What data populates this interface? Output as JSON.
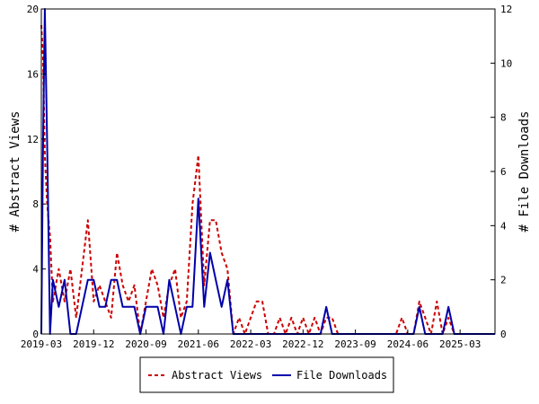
{
  "chart_data": {
    "type": "line",
    "xlabel": "",
    "ylabel": "# Abstract Views",
    "y2label": "# File Downloads",
    "x_tick_labels": [
      "2019-03",
      "2019-12",
      "2020-09",
      "2021-06",
      "2022-03",
      "2022-12",
      "2023-09",
      "2024-06",
      "2025-03"
    ],
    "x_tick_index": [
      0,
      9,
      18,
      27,
      36,
      45,
      54,
      63,
      72
    ],
    "xlim": [
      0,
      78
    ],
    "ylim": [
      0,
      20
    ],
    "y_ticks": [
      "0",
      "4",
      "8",
      "12",
      "16",
      "20"
    ],
    "y2lim": [
      0,
      12
    ],
    "y2_ticks": [
      "0",
      "2",
      "4",
      "6",
      "8",
      "10",
      "12"
    ],
    "grid": false,
    "legend_position": "bottom",
    "series": [
      {
        "name": "Abstract Views",
        "axis": "left",
        "color": "#cc0000",
        "dash": true,
        "x": [
          0,
          0.3,
          0.6,
          1,
          1.5,
          2,
          3,
          4,
          5,
          6,
          7,
          8,
          9,
          10,
          11,
          12,
          13,
          14,
          15,
          16,
          17,
          18,
          19,
          20,
          21,
          22,
          23,
          24,
          25,
          26,
          27,
          28,
          29,
          30,
          31,
          32,
          33,
          34,
          35,
          36,
          37,
          38,
          39,
          40,
          41,
          42,
          43,
          44,
          45,
          46,
          47,
          48,
          49,
          50,
          51,
          52,
          53,
          54,
          55,
          56,
          57,
          58,
          59,
          60,
          61,
          62,
          63,
          64,
          65,
          66,
          67,
          68,
          69,
          70,
          71,
          72,
          73,
          74,
          75,
          76,
          77,
          78
        ],
        "values": [
          19,
          17,
          11,
          8,
          6,
          2,
          4,
          2,
          4,
          1,
          4,
          7,
          2,
          3,
          2,
          1,
          5,
          3,
          2,
          3,
          0,
          2,
          4,
          3,
          1,
          3,
          4,
          1,
          2,
          8,
          11,
          3,
          7,
          7,
          5,
          4,
          0,
          1,
          0,
          1,
          2,
          2,
          0,
          0,
          1,
          0,
          1,
          0,
          1,
          0,
          1,
          0,
          1,
          1,
          0,
          0,
          0,
          0,
          0,
          0,
          0,
          0,
          0,
          0,
          0,
          1,
          0,
          0,
          2,
          1,
          0,
          2,
          0,
          1,
          0,
          0,
          0,
          0,
          0,
          0,
          0,
          0
        ]
      },
      {
        "name": "File Downloads",
        "axis": "right",
        "color": "#0000aa",
        "dash": false,
        "x": [
          0,
          0.3,
          0.6,
          1,
          1.5,
          2,
          3,
          4,
          5,
          6,
          7,
          8,
          9,
          10,
          11,
          12,
          13,
          14,
          15,
          16,
          17,
          18,
          19,
          20,
          21,
          22,
          23,
          24,
          25,
          26,
          27,
          28,
          29,
          30,
          31,
          32,
          33,
          34,
          35,
          36,
          37,
          38,
          39,
          40,
          41,
          42,
          43,
          44,
          45,
          46,
          47,
          48,
          49,
          50,
          51,
          52,
          53,
          54,
          55,
          56,
          57,
          58,
          59,
          60,
          61,
          62,
          63,
          64,
          65,
          66,
          67,
          68,
          69,
          70,
          71,
          72,
          73,
          74,
          75,
          76,
          77,
          78
        ],
        "values": [
          0,
          7,
          12,
          7,
          0,
          2,
          1,
          2,
          0,
          0,
          1,
          2,
          2,
          1,
          1,
          2,
          2,
          1,
          1,
          1,
          0,
          1,
          1,
          1,
          0,
          2,
          1,
          0,
          1,
          1,
          5,
          1,
          3,
          2,
          1,
          2,
          0,
          0,
          0,
          0,
          0,
          0,
          0,
          0,
          0,
          0,
          0,
          0,
          0,
          0,
          0,
          0,
          1,
          0,
          0,
          0,
          0,
          0,
          0,
          0,
          0,
          0,
          0,
          0,
          0,
          0,
          0,
          0,
          1,
          0,
          0,
          0,
          0,
          1,
          0,
          0,
          0,
          0,
          0,
          0,
          0,
          0
        ]
      }
    ]
  },
  "legend": {
    "items": [
      {
        "label": "Abstract Views"
      },
      {
        "label": "File Downloads"
      }
    ]
  }
}
